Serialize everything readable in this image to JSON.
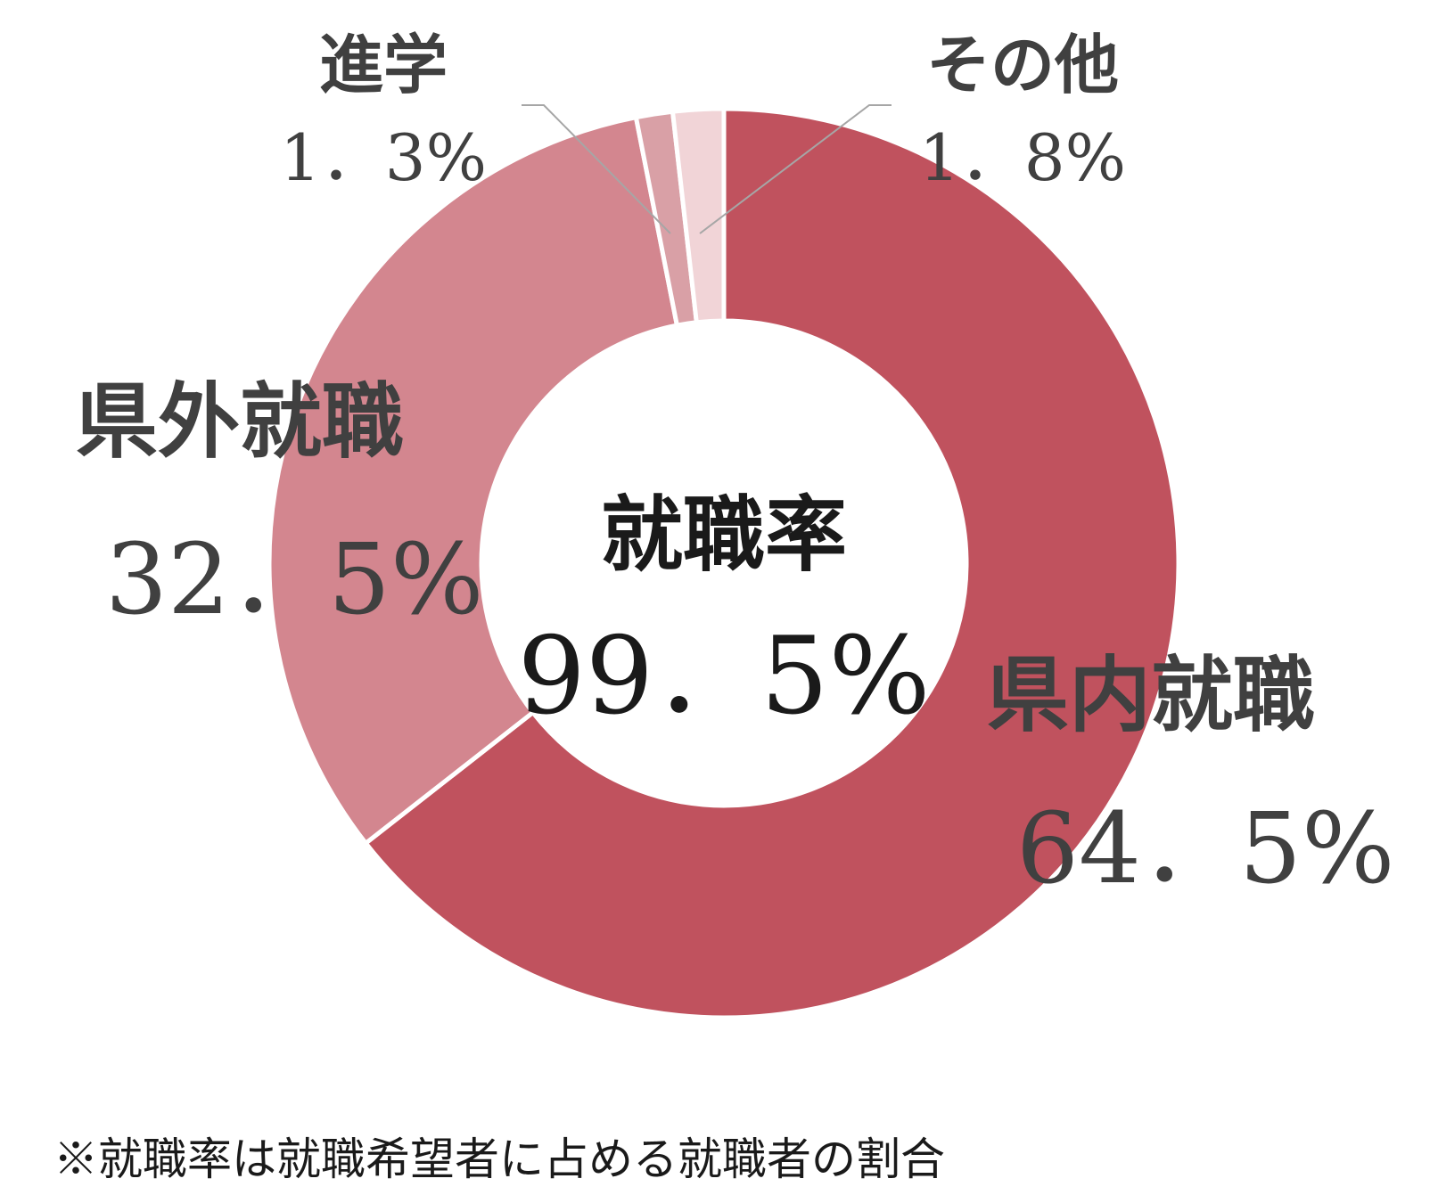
{
  "chart_data": {
    "type": "pie",
    "variant": "donut",
    "slices": [
      {
        "name": "県内就職",
        "value": 64.5,
        "label": "64．5%",
        "color": "#c0525e"
      },
      {
        "name": "県外就職",
        "value": 32.5,
        "label": "32．5%",
        "color": "#d3868f"
      },
      {
        "name": "進学",
        "value": 1.3,
        "label": "1．3%",
        "color": "#d9a0a6"
      },
      {
        "name": "その他",
        "value": 1.8,
        "label": "1．8%",
        "color": "#f1d4d7"
      }
    ],
    "center": {
      "title": "就職率",
      "value": "99．5%"
    },
    "note": "※就職率は就職希望者に占める就職者の割合",
    "start_angle_deg": 0,
    "direction": "clockwise"
  }
}
